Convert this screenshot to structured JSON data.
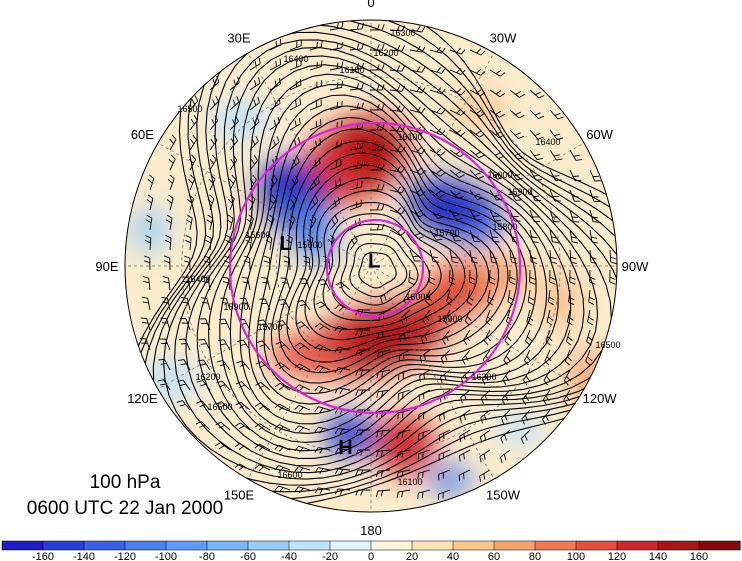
{
  "caption": {
    "level": "100 hPa",
    "time": "0600 UTC 22 Jan 2000"
  },
  "longitude_labels": [
    {
      "text": "0",
      "lon": 0
    },
    {
      "text": "30W",
      "lon": -30
    },
    {
      "text": "60W",
      "lon": -60
    },
    {
      "text": "90W",
      "lon": -90
    },
    {
      "text": "120W",
      "lon": -120
    },
    {
      "text": "150W",
      "lon": -150
    },
    {
      "text": "180",
      "lon": 180
    },
    {
      "text": "150E",
      "lon": 150
    },
    {
      "text": "120E",
      "lon": 120
    },
    {
      "text": "90E",
      "lon": 90
    },
    {
      "text": "60E",
      "lon": 60
    },
    {
      "text": "30E",
      "lon": 30
    }
  ],
  "pressure_systems": [
    {
      "text": "L",
      "lat": 88,
      "lon": -30
    },
    {
      "text": "L",
      "lat": 62,
      "lon": 75
    },
    {
      "text": "H",
      "lat": 32,
      "lon": 172
    }
  ],
  "contour_labels": [
    "16300",
    "16200",
    "16100",
    "16400",
    "16500",
    "16000",
    "15900",
    "15800",
    "15700",
    "15600",
    "16600"
  ],
  "colorbar": {
    "labels": [
      "-160",
      "-140",
      "-120",
      "-100",
      "-80",
      "-60",
      "-40",
      "-20",
      "0",
      "20",
      "40",
      "60",
      "80",
      "100",
      "120",
      "140",
      "160"
    ],
    "colors": [
      "#1c1ec4",
      "#2a3fd8",
      "#3a5fe6",
      "#4a7ff0",
      "#5e9bf6",
      "#78b6fa",
      "#98cdfc",
      "#bde2fd",
      "#e0f3fe",
      "#fff6dc",
      "#fde2b4",
      "#fbc88c",
      "#f7a36c",
      "#ef7a52",
      "#e44e3c",
      "#cc2a2a",
      "#a81616",
      "#7e0a0a"
    ]
  },
  "map": {
    "projection": "north polar stereographic",
    "contour_color": "#000000",
    "circle_color": "#e020e0"
  }
}
